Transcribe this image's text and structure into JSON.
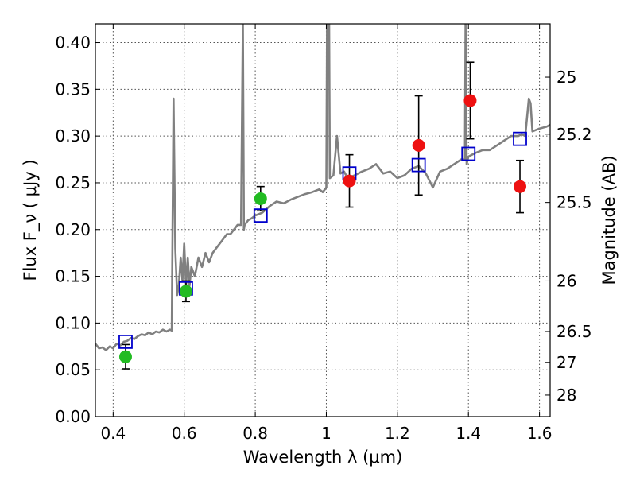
{
  "chart_data": {
    "type": "scatter",
    "xlabel": "Wavelength λ (μm)",
    "ylabel": "Flux F_ν ( μJy )",
    "y2label": "Magnitude (AB)",
    "xlim": [
      0.35,
      1.63
    ],
    "ylim": [
      0.0,
      0.42
    ],
    "grid": true,
    "x_ticks": [
      0.4,
      0.6,
      0.8,
      1.0,
      1.2,
      1.4,
      1.6
    ],
    "x_tick_labels": [
      "0.4",
      "0.6",
      "0.8",
      "1",
      "1.2",
      "1.4",
      "1.6"
    ],
    "y_ticks": [
      0.0,
      0.05,
      0.1,
      0.15,
      0.2,
      0.25,
      0.3,
      0.35,
      0.4
    ],
    "y_tick_labels": [
      "0.00",
      "0.05",
      "0.10",
      "0.15",
      "0.20",
      "0.25",
      "0.30",
      "0.35",
      "0.40"
    ],
    "y2_ticks": [
      {
        "label": "25",
        "flux": 0.363
      },
      {
        "label": "25.2",
        "flux": 0.302
      },
      {
        "label": "25.5",
        "flux": 0.229
      },
      {
        "label": "26",
        "flux": 0.145
      },
      {
        "label": "26.5",
        "flux": 0.091
      },
      {
        "label": "27",
        "flux": 0.058
      },
      {
        "label": "28",
        "flux": 0.023
      }
    ],
    "colors": {
      "spectrum": "#808080",
      "model_squares": "#0000cc",
      "green": "#22bb22",
      "red": "#ee1111",
      "errorbar": "#000000",
      "grid": "#555555"
    },
    "series": [
      {
        "kind": "line",
        "points": [
          [
            0.35,
            0.078
          ],
          [
            0.36,
            0.073
          ],
          [
            0.37,
            0.074
          ],
          [
            0.38,
            0.071
          ],
          [
            0.39,
            0.075
          ],
          [
            0.4,
            0.073
          ],
          [
            0.41,
            0.078
          ],
          [
            0.42,
            0.076
          ],
          [
            0.43,
            0.08
          ],
          [
            0.44,
            0.081
          ],
          [
            0.45,
            0.084
          ],
          [
            0.46,
            0.083
          ],
          [
            0.47,
            0.086
          ],
          [
            0.48,
            0.088
          ],
          [
            0.49,
            0.087
          ],
          [
            0.5,
            0.09
          ],
          [
            0.51,
            0.088
          ],
          [
            0.52,
            0.091
          ],
          [
            0.53,
            0.09
          ],
          [
            0.54,
            0.093
          ],
          [
            0.55,
            0.091
          ],
          [
            0.56,
            0.093
          ],
          [
            0.565,
            0.092
          ],
          [
            0.57,
            0.34
          ],
          [
            0.575,
            0.18
          ],
          [
            0.58,
            0.13
          ],
          [
            0.585,
            0.14
          ],
          [
            0.59,
            0.17
          ],
          [
            0.595,
            0.145
          ],
          [
            0.6,
            0.185
          ],
          [
            0.605,
            0.14
          ],
          [
            0.61,
            0.17
          ],
          [
            0.615,
            0.14
          ],
          [
            0.62,
            0.16
          ],
          [
            0.63,
            0.15
          ],
          [
            0.64,
            0.17
          ],
          [
            0.65,
            0.16
          ],
          [
            0.66,
            0.175
          ],
          [
            0.67,
            0.165
          ],
          [
            0.68,
            0.175
          ],
          [
            0.69,
            0.18
          ],
          [
            0.7,
            0.185
          ],
          [
            0.71,
            0.19
          ],
          [
            0.72,
            0.195
          ],
          [
            0.73,
            0.195
          ],
          [
            0.74,
            0.2
          ],
          [
            0.75,
            0.205
          ],
          [
            0.76,
            0.205
          ],
          [
            0.765,
            0.42
          ],
          [
            0.768,
            0.2
          ],
          [
            0.77,
            0.205
          ],
          [
            0.78,
            0.21
          ],
          [
            0.79,
            0.212
          ],
          [
            0.8,
            0.215
          ],
          [
            0.82,
            0.218
          ],
          [
            0.84,
            0.225
          ],
          [
            0.86,
            0.23
          ],
          [
            0.88,
            0.228
          ],
          [
            0.9,
            0.232
          ],
          [
            0.92,
            0.235
          ],
          [
            0.94,
            0.238
          ],
          [
            0.96,
            0.24
          ],
          [
            0.98,
            0.243
          ],
          [
            0.99,
            0.24
          ],
          [
            1.0,
            0.245
          ],
          [
            1.002,
            0.42
          ],
          [
            1.008,
            0.42
          ],
          [
            1.01,
            0.255
          ],
          [
            1.02,
            0.258
          ],
          [
            1.03,
            0.3
          ],
          [
            1.04,
            0.26
          ],
          [
            1.05,
            0.262
          ],
          [
            1.06,
            0.255
          ],
          [
            1.08,
            0.258
          ],
          [
            1.1,
            0.262
          ],
          [
            1.12,
            0.265
          ],
          [
            1.14,
            0.27
          ],
          [
            1.16,
            0.26
          ],
          [
            1.18,
            0.262
          ],
          [
            1.2,
            0.255
          ],
          [
            1.22,
            0.258
          ],
          [
            1.24,
            0.265
          ],
          [
            1.26,
            0.268
          ],
          [
            1.28,
            0.26
          ],
          [
            1.3,
            0.245
          ],
          [
            1.32,
            0.262
          ],
          [
            1.34,
            0.265
          ],
          [
            1.36,
            0.27
          ],
          [
            1.38,
            0.275
          ],
          [
            1.39,
            0.275
          ],
          [
            1.392,
            0.42
          ],
          [
            1.395,
            0.27
          ],
          [
            1.4,
            0.278
          ],
          [
            1.42,
            0.282
          ],
          [
            1.44,
            0.285
          ],
          [
            1.46,
            0.285
          ],
          [
            1.48,
            0.29
          ],
          [
            1.5,
            0.295
          ],
          [
            1.52,
            0.3
          ],
          [
            1.54,
            0.3
          ],
          [
            1.55,
            0.302
          ],
          [
            1.56,
            0.3
          ],
          [
            1.57,
            0.34
          ],
          [
            1.575,
            0.335
          ],
          [
            1.58,
            0.305
          ],
          [
            1.6,
            0.308
          ],
          [
            1.62,
            0.31
          ],
          [
            1.63,
            0.312
          ]
        ]
      },
      {
        "kind": "squares",
        "points": [
          [
            0.435,
            0.08
          ],
          [
            0.605,
            0.137
          ],
          [
            0.815,
            0.215
          ],
          [
            1.065,
            0.26
          ],
          [
            1.26,
            0.269
          ],
          [
            1.4,
            0.281
          ],
          [
            1.545,
            0.297
          ]
        ]
      },
      {
        "kind": "green_points",
        "points": [
          {
            "x": 0.435,
            "y": 0.064,
            "err": 0.013
          },
          {
            "x": 0.605,
            "y": 0.134,
            "err": 0.011
          },
          {
            "x": 0.815,
            "y": 0.233,
            "err": 0.013
          }
        ]
      },
      {
        "kind": "red_points",
        "points": [
          {
            "x": 1.065,
            "y": 0.252,
            "err": 0.028
          },
          {
            "x": 1.26,
            "y": 0.29,
            "err": 0.053
          },
          {
            "x": 1.405,
            "y": 0.338,
            "err": 0.041
          },
          {
            "x": 1.545,
            "y": 0.246,
            "err": 0.028
          }
        ]
      }
    ]
  }
}
